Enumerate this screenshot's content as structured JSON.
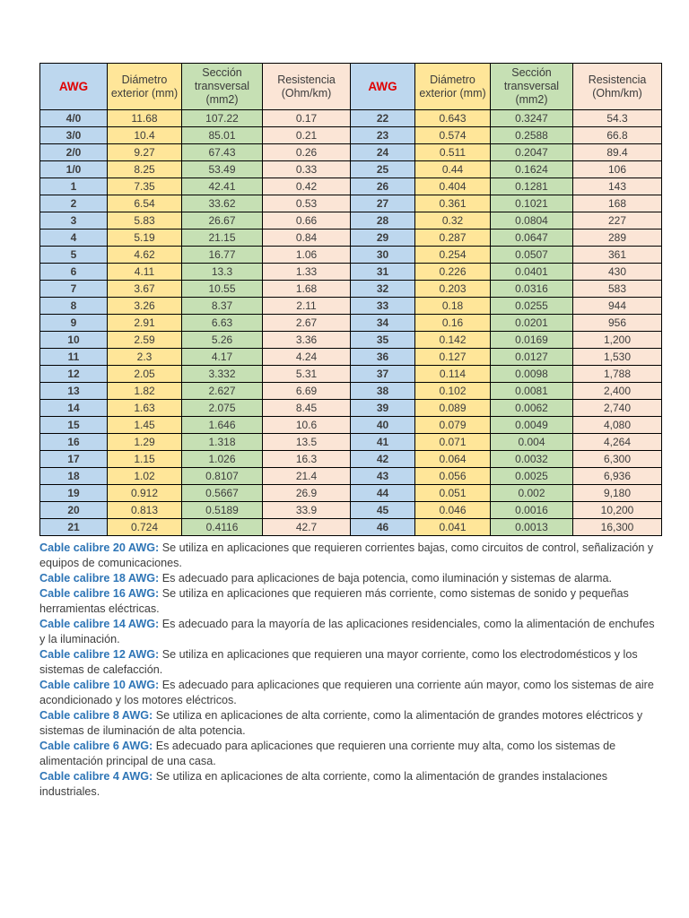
{
  "colors": {
    "page_bg": "#ffffff",
    "awg_col_bg": "#bdd7ee",
    "diam_col_bg": "#ffe699",
    "sec_col_bg": "#c6e0b4",
    "res_col_bg": "#fbe5d6",
    "awg_text": "#e00000",
    "header_text": "#3b3b3b",
    "body_text": "#3d3d3d",
    "note_label": "#2e75b6",
    "border": "#000000"
  },
  "table": {
    "headers": [
      "AWG",
      "Diámetro exterior (mm)",
      "Sección transversal (mm2)",
      "Resistencia (Ohm/km)",
      "AWG",
      "Diámetro exterior (mm)",
      "Sección transversal (mm2)",
      "Resistencia (Ohm/km)"
    ],
    "rows": [
      [
        "4/0",
        "11.68",
        "107.22",
        "0.17",
        "22",
        "0.643",
        "0.3247",
        "54.3"
      ],
      [
        "3/0",
        "10.4",
        "85.01",
        "0.21",
        "23",
        "0.574",
        "0.2588",
        "66.8"
      ],
      [
        "2/0",
        "9.27",
        "67.43",
        "0.26",
        "24",
        "0.511",
        "0.2047",
        "89.4"
      ],
      [
        "1/0",
        "8.25",
        "53.49",
        "0.33",
        "25",
        "0.44",
        "0.1624",
        "106"
      ],
      [
        "1",
        "7.35",
        "42.41",
        "0.42",
        "26",
        "0.404",
        "0.1281",
        "143"
      ],
      [
        "2",
        "6.54",
        "33.62",
        "0.53",
        "27",
        "0.361",
        "0.1021",
        "168"
      ],
      [
        "3",
        "5.83",
        "26.67",
        "0.66",
        "28",
        "0.32",
        "0.0804",
        "227"
      ],
      [
        "4",
        "5.19",
        "21.15",
        "0.84",
        "29",
        "0.287",
        "0.0647",
        "289"
      ],
      [
        "5",
        "4.62",
        "16.77",
        "1.06",
        "30",
        "0.254",
        "0.0507",
        "361"
      ],
      [
        "6",
        "4.11",
        "13.3",
        "1.33",
        "31",
        "0.226",
        "0.0401",
        "430"
      ],
      [
        "7",
        "3.67",
        "10.55",
        "1.68",
        "32",
        "0.203",
        "0.0316",
        "583"
      ],
      [
        "8",
        "3.26",
        "8.37",
        "2.11",
        "33",
        "0.18",
        "0.0255",
        "944"
      ],
      [
        "9",
        "2.91",
        "6.63",
        "2.67",
        "34",
        "0.16",
        "0.0201",
        "956"
      ],
      [
        "10",
        "2.59",
        "5.26",
        "3.36",
        "35",
        "0.142",
        "0.0169",
        "1,200"
      ],
      [
        "11",
        "2.3",
        "4.17",
        "4.24",
        "36",
        "0.127",
        "0.0127",
        "1,530"
      ],
      [
        "12",
        "2.05",
        "3.332",
        "5.31",
        "37",
        "0.114",
        "0.0098",
        "1,788"
      ],
      [
        "13",
        "1.82",
        "2.627",
        "6.69",
        "38",
        "0.102",
        "0.0081",
        "2,400"
      ],
      [
        "14",
        "1.63",
        "2.075",
        "8.45",
        "39",
        "0.089",
        "0.0062",
        "2,740"
      ],
      [
        "15",
        "1.45",
        "1.646",
        "10.6",
        "40",
        "0.079",
        "0.0049",
        "4,080"
      ],
      [
        "16",
        "1.29",
        "1.318",
        "13.5",
        "41",
        "0.071",
        "0.004",
        "4,264"
      ],
      [
        "17",
        "1.15",
        "1.026",
        "16.3",
        "42",
        "0.064",
        "0.0032",
        "6,300"
      ],
      [
        "18",
        "1.02",
        "0.8107",
        "21.4",
        "43",
        "0.056",
        "0.0025",
        "6,936"
      ],
      [
        "19",
        "0.912",
        "0.5667",
        "26.9",
        "44",
        "0.051",
        "0.002",
        "9,180"
      ],
      [
        "20",
        "0.813",
        "0.5189",
        "33.9",
        "45",
        "0.046",
        "0.0016",
        "10,200"
      ],
      [
        "21",
        "0.724",
        "0.4116",
        "42.7",
        "46",
        "0.041",
        "0.0013",
        "16,300"
      ]
    ]
  },
  "notes": [
    {
      "label": "Cable calibre 20 AWG:",
      "text": "Se utiliza en aplicaciones que requieren corrientes bajas, como circuitos de control, señalización y equipos de comunicaciones."
    },
    {
      "label": "Cable calibre 18 AWG:",
      "text": "Es adecuado para aplicaciones de baja potencia, como iluminación y sistemas de alarma."
    },
    {
      "label": "Cable calibre 16 AWG:",
      "text": "Se utiliza en aplicaciones que requieren más corriente, como sistemas de sonido y pequeñas herramientas eléctricas."
    },
    {
      "label": "Cable calibre 14 AWG:",
      "text": "Es adecuado para la mayoría de las aplicaciones residenciales, como la alimentación de enchufes y la iluminación."
    },
    {
      "label": "Cable calibre 12 AWG:",
      "text": "Se utiliza en aplicaciones que requieren una mayor corriente, como los electrodomésticos y los sistemas de calefacción."
    },
    {
      "label": "Cable calibre 10 AWG:",
      "text": "Es adecuado para aplicaciones que requieren una corriente aún mayor, como los sistemas de aire acondicionado y los motores eléctricos."
    },
    {
      "label": "Cable calibre 8 AWG:",
      "text": "Se utiliza en aplicaciones de alta corriente, como la alimentación de grandes motores eléctricos y sistemas de iluminación de alta potencia."
    },
    {
      "label": "Cable calibre 6 AWG:",
      "text": "Es adecuado para aplicaciones que requieren una corriente muy alta, como los sistemas de alimentación principal de una casa."
    },
    {
      "label": "Cable calibre 4 AWG:",
      "text": "Se utiliza en aplicaciones de alta corriente, como la alimentación de grandes instalaciones industriales."
    }
  ]
}
